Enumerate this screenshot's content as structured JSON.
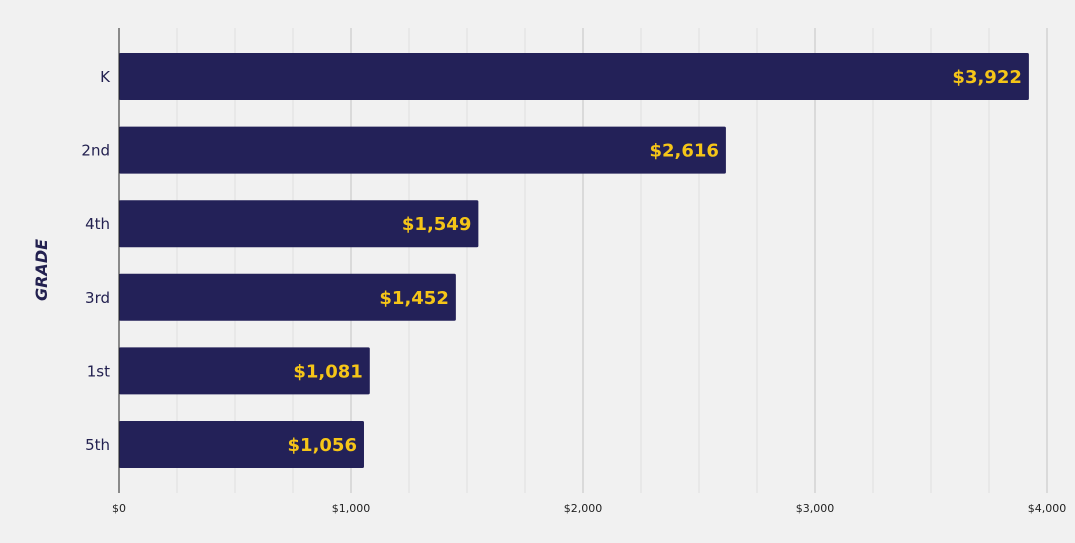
{
  "chart_data": {
    "type": "bar",
    "orientation": "horizontal",
    "ylabel": "GRADE",
    "xlabel": "",
    "title": "",
    "categories": [
      "K",
      "2nd",
      "4th",
      "3rd",
      "1st",
      "5th"
    ],
    "values": [
      3922,
      2616,
      1549,
      1452,
      1081,
      1056
    ],
    "data_labels": [
      "$3,922",
      "$2,616",
      "$1,549",
      "$1,452",
      "$1,081",
      "$1,056"
    ],
    "xlim": [
      0,
      4000
    ],
    "x_ticks": [
      0,
      1000,
      2000,
      3000,
      4000
    ],
    "x_tick_labels": [
      "$0",
      "$1,000",
      "$2,000",
      "$3,000",
      "$4,000"
    ],
    "minor_grid_step": 250,
    "grid": true,
    "colors": {
      "bar": "#232158",
      "bar_label": "#f5c518",
      "grid_major": "#c4c4c4",
      "grid_minor": "#dedede",
      "axis": "#222222"
    }
  }
}
